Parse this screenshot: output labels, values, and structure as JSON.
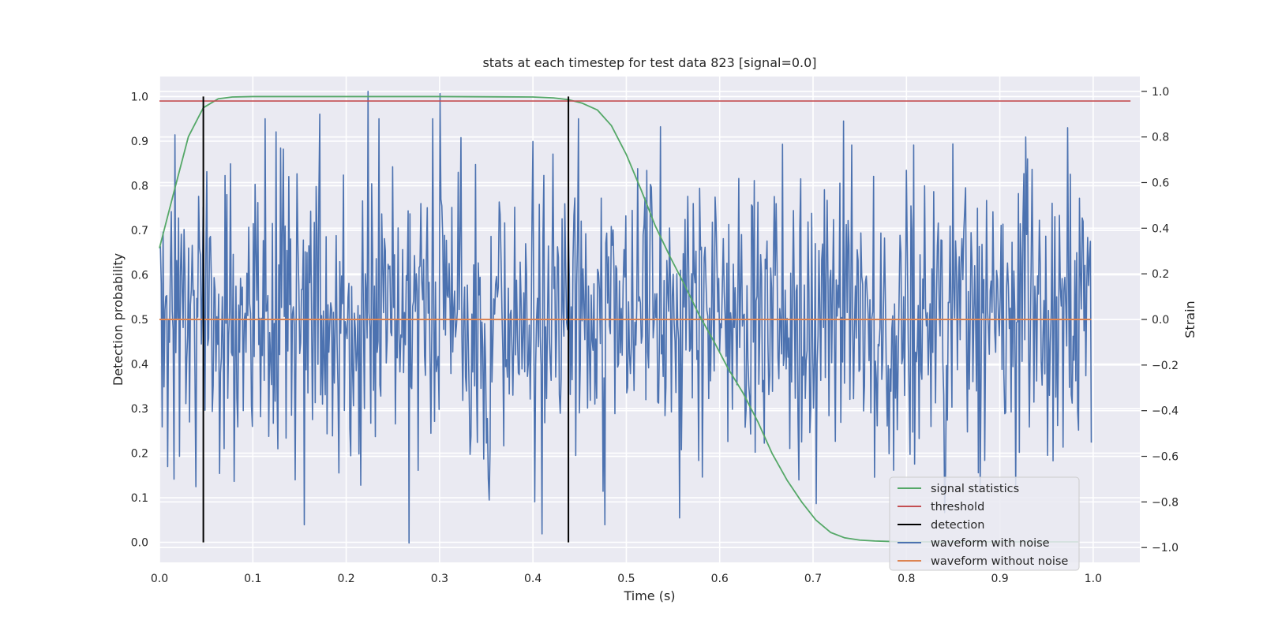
{
  "chart_data": {
    "type": "line",
    "title": "stats at each timestep for test data 823 [signal=0.0]",
    "xlabel": "Time (s)",
    "ylabel": "Detection probability",
    "y2label": "Strain",
    "xlim": [
      0.0,
      1.05
    ],
    "ylim": [
      -0.045,
      1.045
    ],
    "y2lim": [
      -1.065,
      1.065
    ],
    "xticks": [
      "0.0",
      "0.1",
      "0.2",
      "0.3",
      "0.4",
      "0.5",
      "0.6",
      "0.7",
      "0.8",
      "0.9",
      "1.0"
    ],
    "yticks": [
      "0.0",
      "0.1",
      "0.2",
      "0.3",
      "0.4",
      "0.5",
      "0.6",
      "0.7",
      "0.8",
      "0.9",
      "1.0"
    ],
    "y2ticks": [
      "−1.0",
      "−0.8",
      "−0.6",
      "−0.4",
      "−0.2",
      "0.0",
      "0.2",
      "0.4",
      "0.6",
      "0.8",
      "1.0"
    ],
    "grid": true,
    "legend_position": "lower-right",
    "series": [
      {
        "name": "signal statistics",
        "axis": "left",
        "color": "#55a868",
        "x": [
          0.0,
          0.016,
          0.031,
          0.047,
          0.063,
          0.078,
          0.1,
          0.2,
          0.3,
          0.4,
          0.422,
          0.438,
          0.453,
          0.469,
          0.484,
          0.5,
          0.516,
          0.531,
          0.547,
          0.563,
          0.578,
          0.594,
          0.609,
          0.625,
          0.641,
          0.656,
          0.672,
          0.688,
          0.703,
          0.719,
          0.734,
          0.75,
          0.766,
          0.781,
          0.797,
          0.85,
          0.9,
          0.95,
          0.984
        ],
        "y": [
          0.66,
          0.79,
          0.91,
          0.975,
          0.995,
          0.999,
          1.0,
          1.0,
          1.0,
          0.999,
          0.997,
          0.993,
          0.985,
          0.97,
          0.935,
          0.87,
          0.79,
          0.71,
          0.64,
          0.575,
          0.51,
          0.45,
          0.39,
          0.335,
          0.27,
          0.2,
          0.14,
          0.09,
          0.05,
          0.022,
          0.01,
          0.005,
          0.003,
          0.002,
          0.001,
          0.001,
          0.001,
          0.001,
          0.001
        ]
      },
      {
        "name": "threshold",
        "axis": "left",
        "color": "#c44e52",
        "x": [
          0.0,
          1.04
        ],
        "y": [
          0.99,
          0.99
        ]
      },
      {
        "name": "detection",
        "axis": "left",
        "color": "#000000",
        "segments": [
          {
            "x": 0.047,
            "y0": 0.0,
            "y1": 1.0
          },
          {
            "x": 0.438,
            "y0": 0.0,
            "y1": 1.0
          }
        ]
      },
      {
        "name": "waveform with noise",
        "axis": "right",
        "color": "#4c72b0",
        "x_start": 0.0,
        "x_end": 0.998,
        "amplitude": 0.32,
        "seed": 823,
        "peaks": [
          {
            "x": 0.223,
            "y": 1.0
          },
          {
            "x": 0.3,
            "y": 0.99
          },
          {
            "x": 0.267,
            "y": -0.98
          },
          {
            "x": 0.41,
            "y": -0.94
          },
          {
            "x": 0.733,
            "y": 0.87
          },
          {
            "x": 0.172,
            "y": 0.9
          },
          {
            "x": 0.928,
            "y": 0.8
          },
          {
            "x": 0.557,
            "y": -0.87
          },
          {
            "x": 0.016,
            "y": -0.7
          }
        ]
      },
      {
        "name": "waveform without noise",
        "axis": "right",
        "color": "#dd8452",
        "x": [
          0.0,
          0.998
        ],
        "y": [
          0.0,
          0.0
        ]
      }
    ]
  }
}
